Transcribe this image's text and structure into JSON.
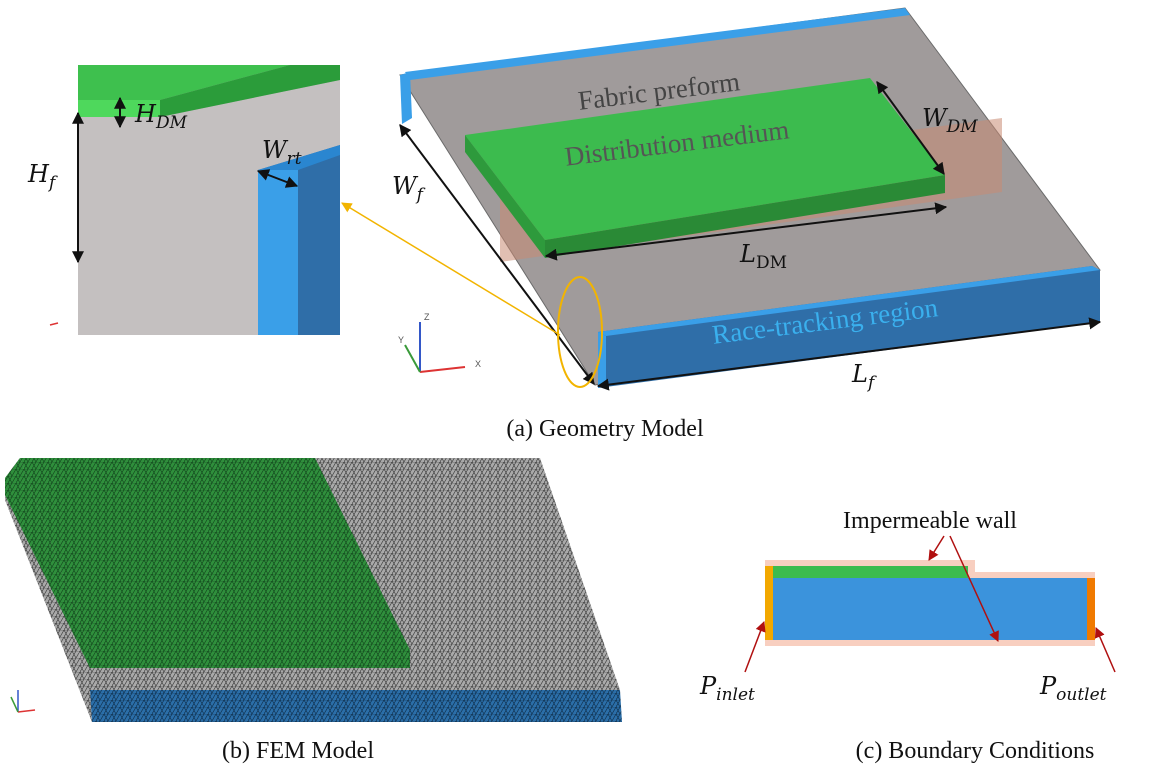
{
  "panel_a": {
    "caption": "(a) Geometry Model",
    "fabric_label": "Fabric preform",
    "dm_label": "Distribution medium",
    "rt_label": "Race-tracking region",
    "dims": {
      "H_DM": {
        "base": "H",
        "sub": "DM"
      },
      "H_f": {
        "base": "H",
        "sub": "f"
      },
      "W_rt": {
        "base": "W",
        "sub": "rt"
      },
      "W_f": {
        "base": "W",
        "sub": "f"
      },
      "W_DM": {
        "base": "W",
        "sub": "DM"
      },
      "L_DM": {
        "base": "L",
        "sub": "DM"
      },
      "L_f": {
        "base": "L",
        "sub": "f"
      }
    },
    "axes": {
      "z": "Z",
      "y": "Y",
      "x": "X"
    }
  },
  "panel_b": {
    "caption": "(b) FEM Model"
  },
  "panel_c": {
    "caption": "(c) Boundary Conditions",
    "wall_label": "Impermeable wall",
    "inlet": {
      "base": "P",
      "sub": "inlet"
    },
    "outlet": {
      "base": "P",
      "sub": "outlet"
    }
  }
}
